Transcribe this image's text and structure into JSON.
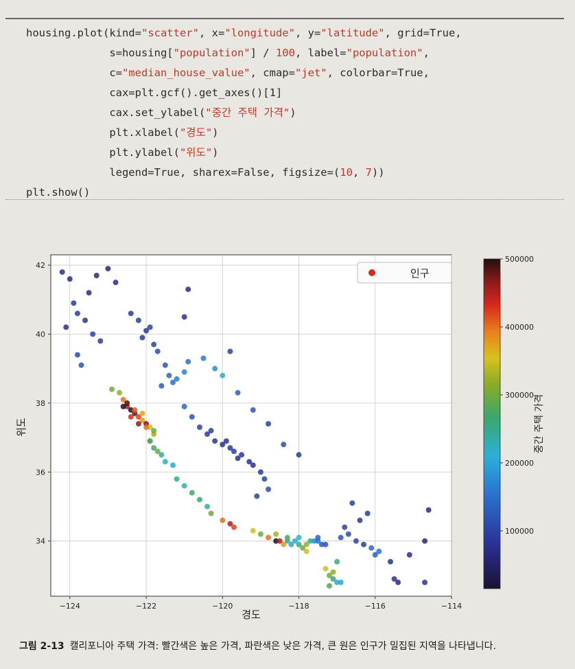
{
  "code": {
    "lines": [
      [
        {
          "t": "housing.plot(kind="
        },
        {
          "t": "\"scatter\"",
          "s": 1
        },
        {
          "t": ", x="
        },
        {
          "t": "\"longitude\"",
          "s": 1
        },
        {
          "t": ", y="
        },
        {
          "t": "\"latitude\"",
          "s": 1
        },
        {
          "t": ", grid=True,"
        }
      ],
      [
        {
          "t": "             s=housing["
        },
        {
          "t": "\"population\"",
          "s": 1
        },
        {
          "t": "] / "
        },
        {
          "t": "100",
          "s": 1
        },
        {
          "t": ", label="
        },
        {
          "t": "\"population\"",
          "s": 1
        },
        {
          "t": ","
        }
      ],
      [
        {
          "t": "             c="
        },
        {
          "t": "\"median_house_value\"",
          "s": 1
        },
        {
          "t": ", cmap="
        },
        {
          "t": "\"jet\"",
          "s": 1
        },
        {
          "t": ", colorbar=True,"
        }
      ],
      [
        {
          "t": "             cax=plt.gcf().get_axes()[1]"
        }
      ],
      [
        {
          "t": "             cax.set_ylabel("
        },
        {
          "t": "\"중간 주택 가격\"",
          "s": 1
        },
        {
          "t": ")"
        }
      ],
      [
        {
          "t": "             plt.xlabel("
        },
        {
          "t": "\"경도\"",
          "s": 1
        },
        {
          "t": ")"
        }
      ],
      [
        {
          "t": "             plt.ylabel("
        },
        {
          "t": "\"위도\"",
          "s": 1
        },
        {
          "t": ")"
        }
      ],
      [
        {
          "t": "             legend=True, sharex=False, figsize=("
        },
        {
          "t": "10",
          "s": 1
        },
        {
          "t": ", "
        },
        {
          "t": "7",
          "s": 1
        },
        {
          "t": "))"
        }
      ],
      [
        {
          "t": "plt.show()"
        }
      ]
    ]
  },
  "chart_data": {
    "type": "scatter",
    "xlabel": "경도",
    "ylabel": "위도",
    "xlim": [
      -124.5,
      -114
    ],
    "ylim": [
      32.4,
      42.3
    ],
    "xticks": [
      -124,
      -122,
      -120,
      -118,
      -116,
      -114
    ],
    "yticks": [
      34,
      36,
      38,
      40,
      42
    ],
    "grid": true,
    "legend": {
      "label": "인구",
      "placement": "top-right"
    },
    "colorbar": {
      "label": "중간 주택 가격",
      "cmap": "jet-dark",
      "range": [
        15000,
        500000
      ],
      "ticks": [
        100000,
        200000,
        300000,
        400000,
        500000
      ]
    },
    "series": [
      {
        "region": "north-coast",
        "x": [
          -124.2,
          -124.0,
          -123.9,
          -123.8,
          -123.6,
          -123.4,
          -123.2,
          -123.8,
          -124.1,
          -123.5,
          -123.3,
          -123.7,
          -123.0,
          -122.8
        ],
        "y": [
          41.8,
          41.6,
          40.9,
          40.6,
          40.4,
          40.0,
          39.8,
          39.4,
          40.2,
          41.2,
          41.7,
          39.1,
          41.9,
          41.5
        ],
        "v": [
          80000,
          70000,
          90000,
          95000,
          85000,
          100000,
          90000,
          110000,
          75000,
          70000,
          65000,
          120000,
          60000,
          70000
        ]
      },
      {
        "region": "sacramento-valley",
        "x": [
          -122.4,
          -122.2,
          -122.0,
          -121.8,
          -121.7,
          -121.5,
          -121.4,
          -121.3,
          -121.2,
          -121.0,
          -120.9,
          -122.1,
          -121.9,
          -121.6
        ],
        "y": [
          40.6,
          40.4,
          40.1,
          39.7,
          39.5,
          39.1,
          38.8,
          38.6,
          38.7,
          38.9,
          39.2,
          39.9,
          40.2,
          38.5
        ],
        "v": [
          90000,
          95000,
          85000,
          100000,
          110000,
          120000,
          140000,
          150000,
          160000,
          170000,
          150000,
          90000,
          100000,
          130000
        ]
      },
      {
        "region": "bay-area",
        "x": [
          -122.9,
          -122.7,
          -122.6,
          -122.5,
          -122.4,
          -122.3,
          -122.2,
          -122.1,
          -122.0,
          -121.9,
          -121.8,
          -122.6,
          -122.4,
          -122.2,
          -122.0,
          -121.9,
          -122.5,
          -122.3,
          -122.1,
          -121.8
        ],
        "y": [
          38.4,
          38.3,
          38.1,
          37.9,
          37.8,
          37.7,
          37.6,
          37.5,
          37.4,
          37.3,
          37.1,
          37.9,
          37.6,
          37.4,
          37.3,
          36.9,
          38.0,
          37.8,
          37.7,
          37.2
        ],
        "v": [
          300000,
          320000,
          400000,
          450000,
          500000,
          480000,
          420000,
          380000,
          470000,
          350000,
          330000,
          500000,
          430000,
          460000,
          400000,
          280000,
          490000,
          410000,
          370000,
          300000
        ]
      },
      {
        "region": "monterey",
        "x": [
          -121.9,
          -121.8,
          -121.7,
          -121.6,
          -121.5,
          -121.3
        ],
        "y": [
          36.9,
          36.7,
          36.6,
          36.5,
          36.3,
          36.2
        ],
        "v": [
          280000,
          260000,
          300000,
          240000,
          220000,
          200000
        ]
      },
      {
        "region": "central-valley",
        "x": [
          -121.0,
          -120.8,
          -120.6,
          -120.4,
          -120.2,
          -120.0,
          -119.8,
          -119.7,
          -119.5,
          -119.3,
          -119.2,
          -119.0,
          -118.9,
          -118.8,
          -120.3,
          -119.9,
          -119.6,
          -119.1
        ],
        "y": [
          37.9,
          37.6,
          37.3,
          37.1,
          36.9,
          36.8,
          36.7,
          36.6,
          36.5,
          36.3,
          36.2,
          36.0,
          35.8,
          35.5,
          37.2,
          36.9,
          36.4,
          35.3
        ],
        "v": [
          140000,
          120000,
          100000,
          90000,
          85000,
          80000,
          90000,
          95000,
          85000,
          80000,
          75000,
          90000,
          100000,
          110000,
          95000,
          85000,
          80000,
          100000
        ]
      },
      {
        "region": "central-coast",
        "x": [
          -121.2,
          -121.0,
          -120.8,
          -120.6,
          -120.4,
          -120.3,
          -120.0,
          -119.8,
          -119.7
        ],
        "y": [
          35.8,
          35.6,
          35.4,
          35.2,
          35.0,
          34.8,
          34.6,
          34.5,
          34.4
        ],
        "v": [
          250000,
          230000,
          270000,
          260000,
          240000,
          300000,
          400000,
          450000,
          420000
        ]
      },
      {
        "region": "los-angeles",
        "x": [
          -119.2,
          -119.0,
          -118.8,
          -118.6,
          -118.5,
          -118.4,
          -118.3,
          -118.2,
          -118.1,
          -118.0,
          -117.9,
          -117.8,
          -117.7,
          -117.6,
          -117.5,
          -117.4,
          -117.3,
          -118.6,
          -118.3,
          -118.0,
          -117.8,
          -117.5
        ],
        "y": [
          34.3,
          34.2,
          34.1,
          34.0,
          34.0,
          33.9,
          34.0,
          33.9,
          34.0,
          33.9,
          33.8,
          33.9,
          34.0,
          34.0,
          34.0,
          33.9,
          33.9,
          34.2,
          34.1,
          34.1,
          33.7,
          34.1
        ],
        "v": [
          350000,
          300000,
          400000,
          500000,
          450000,
          380000,
          250000,
          200000,
          220000,
          260000,
          300000,
          320000,
          240000,
          180000,
          150000,
          130000,
          120000,
          330000,
          280000,
          210000,
          350000,
          140000
        ]
      },
      {
        "region": "san-diego",
        "x": [
          -117.3,
          -117.2,
          -117.1,
          -117.0,
          -117.2,
          -117.1,
          -116.9,
          -117.0
        ],
        "y": [
          33.2,
          33.0,
          32.9,
          32.8,
          32.7,
          33.1,
          32.8,
          33.4
        ],
        "v": [
          350000,
          300000,
          250000,
          220000,
          280000,
          320000,
          200000,
          260000
        ]
      },
      {
        "region": "inland-desert",
        "x": [
          -116.9,
          -116.7,
          -116.5,
          -116.3,
          -116.1,
          -115.9,
          -115.6,
          -115.4,
          -116.4,
          -116.2,
          -115.1,
          -114.7,
          -114.6,
          -115.5,
          -116.0,
          -116.6,
          -114.7,
          -116.8
        ],
        "y": [
          34.1,
          34.2,
          34.0,
          33.9,
          33.8,
          33.7,
          33.4,
          32.8,
          34.6,
          34.8,
          33.6,
          34.0,
          34.9,
          32.9,
          33.6,
          35.1,
          32.8,
          34.4
        ],
        "v": [
          120000,
          110000,
          100000,
          90000,
          140000,
          150000,
          80000,
          70000,
          85000,
          90000,
          75000,
          60000,
          70000,
          80000,
          130000,
          95000,
          85000,
          100000
        ]
      },
      {
        "region": "sierra",
        "x": [
          -120.5,
          -120.2,
          -120.0,
          -119.6,
          -119.2,
          -118.8,
          -118.4,
          -118.0,
          -121.0,
          -120.9,
          -119.8
        ],
        "y": [
          39.3,
          39.0,
          38.8,
          38.3,
          37.8,
          37.4,
          36.8,
          36.5,
          40.5,
          41.3,
          39.5
        ],
        "v": [
          160000,
          180000,
          220000,
          130000,
          120000,
          100000,
          110000,
          90000,
          80000,
          70000,
          100000
        ]
      }
    ]
  }
}
